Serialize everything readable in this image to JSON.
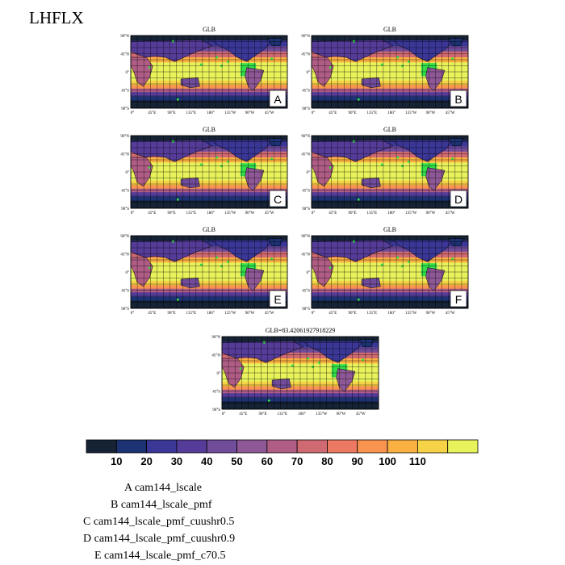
{
  "title": "LHFLX",
  "panels": [
    {
      "title": "GLB",
      "letter": "A"
    },
    {
      "title": "GLB",
      "letter": "B"
    },
    {
      "title": "GLB",
      "letter": "C"
    },
    {
      "title": "GLB",
      "letter": "D"
    },
    {
      "title": "GLB",
      "letter": "E"
    },
    {
      "title": "GLB",
      "letter": "F"
    },
    {
      "title": "GLB=83.42061927918229",
      "letter": ""
    }
  ],
  "lat_ticks": [
    "90°N",
    "45°N",
    "0°",
    "45°S",
    "90°S"
  ],
  "lon_ticks": [
    "0°",
    "45°E",
    "90°E",
    "135°E",
    "180°",
    "135°W",
    "90°W",
    "45°W"
  ],
  "colorbar": {
    "labels": [
      "10",
      "20",
      "30",
      "40",
      "50",
      "60",
      "70",
      "80",
      "90",
      "100",
      "110"
    ],
    "colors": [
      "#162335",
      "#1c3272",
      "#3a3796",
      "#553c98",
      "#704c9a",
      "#8e5896",
      "#b05d86",
      "#d06a72",
      "#ec7a63",
      "#f8944f",
      "#fbb042",
      "#f6d246",
      "#e8f25a"
    ]
  },
  "legend": [
    "A  cam144_lscale",
    "B  cam144_lscale_pmf",
    "C  cam144_lscale_pmf_cuushr0.5",
    "D  cam144_lscale_pmf_cuushr0.9",
    "E  cam144_lscale_pmf_c70.5"
  ]
}
